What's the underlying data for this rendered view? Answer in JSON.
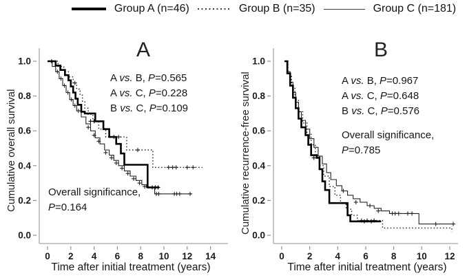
{
  "figure": {
    "background": "#ffffff"
  },
  "colors": {
    "curve": "#000000",
    "curve_thin": "#222222",
    "axis": "#a6a6a6",
    "text": "#1a1a1a"
  },
  "legend": {
    "items": [
      {
        "label": "Group A (n=46)",
        "line_style": "thick-solid"
      },
      {
        "label": "Group B (n=35)",
        "line_style": "dotted"
      },
      {
        "label": "Group C (n=181)",
        "line_style": "thin-solid"
      }
    ]
  },
  "chart_data": [
    {
      "type": "line",
      "subtype": "kaplan-meier-step",
      "panel_label": "A",
      "ylabel": "Cumulative overall survival",
      "xlabel": "Time after initial treatment (years)",
      "x_ticks": [
        0,
        2,
        4,
        6,
        8,
        10,
        12,
        14
      ],
      "x_tick_labels": [
        "0",
        "2",
        "4",
        "6",
        "8",
        "10",
        "12",
        "14"
      ],
      "y_ticks": [
        0.0,
        0.2,
        0.4,
        0.6,
        0.8,
        1.0
      ],
      "y_tick_labels": [
        "0.0",
        "0.2",
        "0.4",
        "0.6",
        "0.8",
        "1.0"
      ],
      "xlim": [
        0,
        15.5
      ],
      "ylim": [
        0,
        1.0
      ],
      "grid": false,
      "legend_position": "figure-top",
      "annotations": {
        "pairwise": [
          "A vs. B, P=0.565",
          "A vs. C, P=0.228",
          "B vs. C, P=0.109"
        ],
        "overall": [
          "Overall significance,",
          "P=0.164"
        ]
      },
      "series": [
        {
          "name": "Group A",
          "n": 46,
          "line": "thick-solid",
          "steps": [
            [
              0,
              1.0
            ],
            [
              0.7,
              0.975
            ],
            [
              1.1,
              0.95
            ],
            [
              1.5,
              0.92
            ],
            [
              1.8,
              0.89
            ],
            [
              2.0,
              0.855
            ],
            [
              2.2,
              0.82
            ],
            [
              2.4,
              0.785
            ],
            [
              2.6,
              0.75
            ],
            [
              2.9,
              0.71
            ],
            [
              3.2,
              0.7
            ],
            [
              4.1,
              0.655
            ],
            [
              4.8,
              0.61
            ],
            [
              5.3,
              0.565
            ],
            [
              5.9,
              0.525
            ],
            [
              6.3,
              0.47
            ],
            [
              6.6,
              0.405
            ],
            [
              8.6,
              0.275
            ],
            [
              9.6,
              0.275
            ]
          ],
          "censors": [
            [
              0.35,
              1.0
            ],
            [
              3.7,
              0.655
            ],
            [
              4.0,
              0.655
            ],
            [
              9.0,
              0.275
            ],
            [
              9.25,
              0.275
            ],
            [
              9.5,
              0.275
            ]
          ]
        },
        {
          "name": "Group B",
          "n": 35,
          "line": "dotted",
          "steps": [
            [
              0,
              1.0
            ],
            [
              0.9,
              0.97
            ],
            [
              1.4,
              0.94
            ],
            [
              1.8,
              0.91
            ],
            [
              2.2,
              0.875
            ],
            [
              2.5,
              0.84
            ],
            [
              2.8,
              0.805
            ],
            [
              3.0,
              0.77
            ],
            [
              3.2,
              0.73
            ],
            [
              3.5,
              0.695
            ],
            [
              3.9,
              0.655
            ],
            [
              4.4,
              0.61
            ],
            [
              5.0,
              0.565
            ],
            [
              6.8,
              0.49
            ],
            [
              9.05,
              0.39
            ],
            [
              13.3,
              0.39
            ]
          ],
          "censors": [
            [
              2.35,
              0.875
            ],
            [
              5.7,
              0.565
            ],
            [
              6.1,
              0.565
            ],
            [
              7.75,
              0.49
            ],
            [
              10.4,
              0.39
            ],
            [
              10.75,
              0.39
            ],
            [
              11.05,
              0.39
            ],
            [
              12.0,
              0.39
            ],
            [
              12.5,
              0.39
            ]
          ]
        },
        {
          "name": "Group C",
          "n": 181,
          "line": "thin-solid",
          "steps": [
            [
              0,
              1.0
            ],
            [
              0.4,
              0.97
            ],
            [
              0.7,
              0.94
            ],
            [
              1.0,
              0.9
            ],
            [
              1.3,
              0.86
            ],
            [
              1.6,
              0.82
            ],
            [
              1.9,
              0.78
            ],
            [
              2.2,
              0.745
            ],
            [
              2.5,
              0.715
            ],
            [
              2.9,
              0.68
            ],
            [
              3.3,
              0.64
            ],
            [
              3.7,
              0.6
            ],
            [
              4.1,
              0.56
            ],
            [
              4.5,
              0.525
            ],
            [
              4.9,
              0.49
            ],
            [
              5.3,
              0.46
            ],
            [
              5.7,
              0.43
            ],
            [
              6.1,
              0.4
            ],
            [
              6.6,
              0.37
            ],
            [
              7.1,
              0.34
            ],
            [
              7.6,
              0.315
            ],
            [
              8.1,
              0.29
            ],
            [
              8.5,
              0.275
            ],
            [
              9.2,
              0.238
            ],
            [
              12.4,
              0.238
            ]
          ],
          "censors": [
            [
              0.85,
              0.94
            ],
            [
              1.15,
              0.9
            ],
            [
              1.45,
              0.86
            ],
            [
              1.75,
              0.82
            ],
            [
              2.05,
              0.78
            ],
            [
              2.35,
              0.745
            ],
            [
              2.65,
              0.715
            ],
            [
              3.5,
              0.62
            ],
            [
              4.0,
              0.575
            ],
            [
              4.4,
              0.54
            ],
            [
              5.0,
              0.475
            ],
            [
              5.5,
              0.445
            ],
            [
              5.9,
              0.415
            ],
            [
              6.4,
              0.385
            ],
            [
              6.9,
              0.355
            ],
            [
              7.4,
              0.325
            ],
            [
              7.9,
              0.3
            ],
            [
              8.35,
              0.28
            ],
            [
              9.35,
              0.238
            ],
            [
              9.55,
              0.238
            ],
            [
              10.9,
              0.238
            ],
            [
              11.1,
              0.238
            ],
            [
              11.35,
              0.238
            ],
            [
              12.25,
              0.238
            ]
          ]
        }
      ]
    },
    {
      "type": "line",
      "subtype": "kaplan-meier-step",
      "panel_label": "B",
      "ylabel": "Cumulative recurrence-free survival",
      "xlabel": "Time after initial treatment (years)",
      "x_ticks": [
        0,
        2,
        4,
        6,
        8,
        10,
        12
      ],
      "x_tick_labels": [
        "0",
        "2",
        "4",
        "6",
        "8",
        "10",
        "12"
      ],
      "y_ticks": [
        0.0,
        0.2,
        0.4,
        0.6,
        0.8,
        1.0
      ],
      "y_tick_labels": [
        "0.0",
        "0.2",
        "0.4",
        "0.6",
        "0.8",
        "1.0"
      ],
      "xlim": [
        0,
        12.6
      ],
      "ylim": [
        0,
        1.0
      ],
      "grid": false,
      "legend_position": "figure-top",
      "annotations": {
        "pairwise": [
          "A vs. B, P=0.967",
          "A vs. C, P=0.648",
          "B vs. C, P=0.576"
        ],
        "overall": [
          "Overall significance,",
          "P=0.785"
        ]
      },
      "series": [
        {
          "name": "Group A",
          "n": 46,
          "line": "thick-solid",
          "steps": [
            [
              0.2,
              1.0
            ],
            [
              0.4,
              0.93
            ],
            [
              0.6,
              0.86
            ],
            [
              0.8,
              0.79
            ],
            [
              1.0,
              0.73
            ],
            [
              1.2,
              0.67
            ],
            [
              1.4,
              0.62
            ],
            [
              1.7,
              0.575
            ],
            [
              1.9,
              0.52
            ],
            [
              2.1,
              0.46
            ],
            [
              2.5,
              0.445
            ],
            [
              2.7,
              0.38
            ],
            [
              2.9,
              0.31
            ],
            [
              3.1,
              0.26
            ],
            [
              3.4,
              0.185
            ],
            [
              4.7,
              0.115
            ],
            [
              4.9,
              0.08
            ],
            [
              7.1,
              0.08
            ]
          ],
          "censors": [
            [
              2.3,
              0.445
            ],
            [
              5.9,
              0.08
            ],
            [
              6.4,
              0.08
            ]
          ]
        },
        {
          "name": "Group B",
          "n": 35,
          "line": "dotted",
          "steps": [
            [
              0.2,
              1.0
            ],
            [
              0.45,
              0.92
            ],
            [
              0.7,
              0.85
            ],
            [
              0.95,
              0.78
            ],
            [
              1.2,
              0.71
            ],
            [
              1.5,
              0.645
            ],
            [
              1.8,
              0.58
            ],
            [
              2.1,
              0.52
            ],
            [
              2.4,
              0.46
            ],
            [
              2.7,
              0.4
            ],
            [
              3.0,
              0.34
            ],
            [
              3.4,
              0.28
            ],
            [
              3.8,
              0.23
            ],
            [
              4.2,
              0.185
            ],
            [
              4.6,
              0.15
            ],
            [
              5.0,
              0.115
            ],
            [
              5.4,
              0.085
            ],
            [
              7.2,
              0.042
            ],
            [
              12.1,
              0.042
            ],
            [
              12.15,
              0.02
            ]
          ],
          "censors": [
            [
              5.7,
              0.085
            ],
            [
              6.1,
              0.085
            ],
            [
              6.6,
              0.085
            ]
          ]
        },
        {
          "name": "Group C",
          "n": 181,
          "line": "thin-solid",
          "steps": [
            [
              0.2,
              1.0
            ],
            [
              0.4,
              0.94
            ],
            [
              0.6,
              0.88
            ],
            [
              0.8,
              0.82
            ],
            [
              1.0,
              0.765
            ],
            [
              1.2,
              0.71
            ],
            [
              1.4,
              0.66
            ],
            [
              1.7,
              0.61
            ],
            [
              2.0,
              0.555
            ],
            [
              2.3,
              0.505
            ],
            [
              2.6,
              0.455
            ],
            [
              2.9,
              0.41
            ],
            [
              3.2,
              0.36
            ],
            [
              3.5,
              0.32
            ],
            [
              3.9,
              0.285
            ],
            [
              4.3,
              0.255
            ],
            [
              4.7,
              0.23
            ],
            [
              5.1,
              0.21
            ],
            [
              5.6,
              0.19
            ],
            [
              6.1,
              0.17
            ],
            [
              6.6,
              0.155
            ],
            [
              7.1,
              0.14
            ],
            [
              7.7,
              0.125
            ],
            [
              9.8,
              0.065
            ],
            [
              12.3,
              0.065
            ]
          ],
          "censors": [
            [
              4.4,
              0.255
            ],
            [
              5.3,
              0.19
            ],
            [
              6.3,
              0.17
            ],
            [
              6.9,
              0.14
            ],
            [
              7.9,
              0.125
            ],
            [
              8.1,
              0.125
            ],
            [
              8.35,
              0.125
            ],
            [
              9.0,
              0.125
            ],
            [
              9.3,
              0.125
            ],
            [
              11.0,
              0.065
            ],
            [
              12.25,
              0.065
            ]
          ]
        }
      ]
    }
  ]
}
